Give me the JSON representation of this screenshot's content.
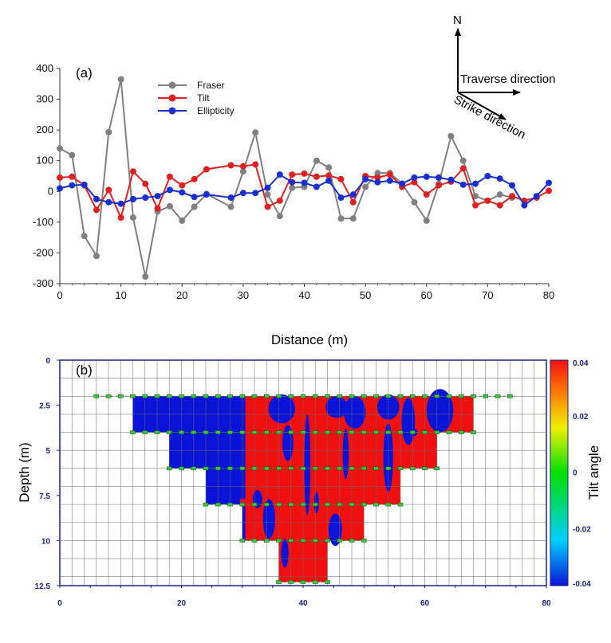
{
  "chart_data": [
    {
      "panel_label": "(a)",
      "type": "line",
      "xlabel": "Distance (m)",
      "ylabel": "",
      "xlim": [
        0,
        80
      ],
      "ylim": [
        -300,
        400
      ],
      "xticks": [
        0,
        10,
        20,
        30,
        40,
        50,
        60,
        70,
        80
      ],
      "yticks": [
        400,
        300,
        200,
        100,
        0,
        -100,
        -200,
        -300
      ],
      "legend_position": "top-left",
      "series": [
        {
          "name": "Fraser",
          "color": "#808080",
          "x": [
            0,
            2,
            4,
            6,
            8,
            10,
            12,
            14,
            16,
            18,
            20,
            22,
            24,
            28,
            30,
            32,
            34,
            36,
            38,
            40,
            42,
            44,
            46,
            48,
            50,
            52,
            54,
            56,
            58,
            60,
            62,
            64,
            66,
            68,
            70,
            72,
            74
          ],
          "y": [
            140,
            118,
            -145,
            -210,
            193,
            365,
            -85,
            -277,
            -65,
            -48,
            -95,
            -50,
            -8,
            -50,
            65,
            192,
            -10,
            -80,
            12,
            15,
            100,
            78,
            -88,
            -88,
            15,
            60,
            60,
            25,
            -35,
            -95,
            25,
            180,
            100,
            -15,
            -30,
            -10,
            -20
          ]
        },
        {
          "name": "Tilt",
          "color": "#e02020",
          "x": [
            0,
            2,
            4,
            6,
            8,
            10,
            12,
            14,
            16,
            18,
            20,
            22,
            24,
            28,
            30,
            32,
            34,
            36,
            38,
            40,
            42,
            44,
            46,
            48,
            50,
            52,
            54,
            56,
            58,
            60,
            62,
            64,
            66,
            68,
            70,
            72,
            74,
            76,
            78,
            80
          ],
          "y": [
            45,
            48,
            20,
            -60,
            5,
            -85,
            65,
            25,
            -55,
            48,
            20,
            40,
            72,
            85,
            82,
            88,
            -50,
            -30,
            55,
            58,
            48,
            52,
            40,
            -35,
            50,
            45,
            55,
            15,
            30,
            -10,
            20,
            32,
            75,
            -45,
            -30,
            -45,
            -15,
            -30,
            -20,
            2
          ]
        },
        {
          "name": "Ellipticity",
          "color": "#1a2fd0",
          "x": [
            0,
            2,
            4,
            6,
            8,
            10,
            12,
            14,
            16,
            18,
            20,
            22,
            24,
            28,
            30,
            32,
            34,
            36,
            38,
            40,
            42,
            44,
            46,
            48,
            50,
            52,
            54,
            56,
            58,
            60,
            62,
            64,
            66,
            68,
            70,
            72,
            74,
            76,
            78,
            80
          ],
          "y": [
            10,
            20,
            22,
            -25,
            -35,
            -40,
            -25,
            -20,
            -15,
            5,
            -3,
            -18,
            -10,
            -20,
            -5,
            -5,
            12,
            55,
            30,
            28,
            15,
            35,
            -20,
            -10,
            40,
            30,
            35,
            25,
            45,
            48,
            45,
            38,
            22,
            25,
            50,
            42,
            20,
            -45,
            -15,
            28
          ]
        }
      ]
    },
    {
      "panel_label": "(b)",
      "type": "heatmap",
      "xlabel": "",
      "ylabel": "Depth (m)",
      "xlim": [
        0,
        80
      ],
      "ylim": [
        0,
        12.5
      ],
      "xticks": [
        0,
        20,
        40,
        60,
        80
      ],
      "yticks": [
        0,
        2.5,
        5,
        7.5,
        10,
        12.5
      ],
      "colorbar": {
        "label": "Tilt angle",
        "range": [
          -0.04,
          0.04
        ],
        "ticks": [
          "0.04",
          "0.02",
          "0",
          "-0.02",
          "-0.04"
        ],
        "colors": [
          "#0a14d8",
          "#00cfff",
          "#00e000",
          "#f0f000",
          "#ff8000",
          "#f01010"
        ]
      },
      "pseudosection_rows": [
        {
          "depth_top": 2,
          "depth_bottom": 4,
          "x_from": 12,
          "x_to": 68
        },
        {
          "depth_top": 4,
          "depth_bottom": 6,
          "x_from": 18,
          "x_to": 62
        },
        {
          "depth_top": 6,
          "depth_bottom": 8,
          "x_from": 24,
          "x_to": 56
        },
        {
          "depth_top": 8,
          "depth_bottom": 10,
          "x_from": 30,
          "x_to": 50
        },
        {
          "depth_top": 10,
          "depth_bottom": 12.3,
          "x_from": 36,
          "x_to": 44
        }
      ],
      "blue_region_x_end": 30.5,
      "marker_rows": [
        {
          "depth": 2,
          "x_from": 6,
          "x_to": 74
        },
        {
          "depth": 4,
          "x_from": 12,
          "x_to": 68
        },
        {
          "depth": 6,
          "x_from": 18,
          "x_to": 62
        },
        {
          "depth": 8,
          "x_from": 24,
          "x_to": 56
        },
        {
          "depth": 10,
          "x_from": 30,
          "x_to": 50
        },
        {
          "depth": 12.3,
          "x_from": 36,
          "x_to": 44
        }
      ]
    }
  ],
  "annotations": {
    "north": "N",
    "traverse": "Traverse direction",
    "strike": "Strike direction"
  }
}
